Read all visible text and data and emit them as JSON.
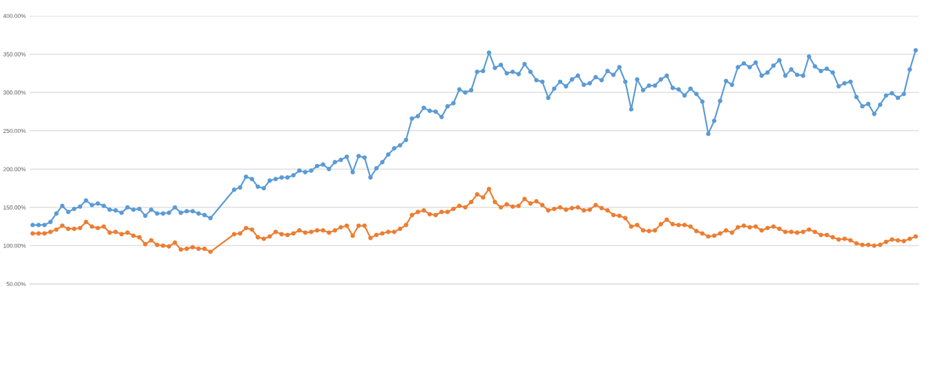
{
  "chart_data": {
    "type": "line",
    "categories": [
      null,
      null,
      null,
      null,
      null,
      null,
      null,
      null,
      null,
      null,
      null,
      null,
      null,
      null,
      null,
      null,
      null,
      null,
      null,
      null,
      null,
      null,
      null,
      null,
      null,
      null,
      null,
      null,
      null,
      null,
      null,
      null,
      null,
      null,
      null,
      null,
      null,
      null,
      null,
      null,
      null,
      null,
      null,
      null,
      null,
      null,
      null,
      null,
      null,
      null,
      null,
      null,
      null,
      null,
      null,
      null,
      null,
      null,
      null,
      null,
      null,
      null,
      null,
      null,
      null,
      null,
      null,
      null,
      null,
      null,
      null,
      null,
      null,
      null,
      null,
      null,
      null,
      null,
      null,
      null,
      null,
      null,
      null,
      null,
      null,
      null,
      null,
      null,
      null,
      null,
      null,
      null,
      null,
      null,
      null,
      null,
      null,
      null,
      null,
      null,
      null,
      null,
      null,
      null,
      null,
      null,
      null,
      null,
      null,
      null,
      null,
      null,
      null,
      null,
      null,
      null,
      null,
      null,
      null,
      null,
      null,
      null,
      null,
      null,
      null,
      null,
      null,
      null,
      null,
      null,
      null,
      null,
      null,
      null,
      null,
      null,
      null,
      null,
      null,
      null,
      null,
      null,
      null,
      null,
      null,
      null,
      null,
      null,
      null,
      null
    ],
    "series": [
      {
        "color": "#5b9bd5",
        "values": [
          127,
          127,
          127,
          131,
          142,
          152,
          144,
          148,
          151,
          159,
          153,
          155,
          152,
          147,
          146,
          143,
          150,
          147,
          148,
          139,
          147,
          142,
          142,
          143,
          150,
          143,
          145,
          145,
          142,
          140,
          136,
          null,
          null,
          null,
          173,
          176,
          190,
          187,
          177,
          175,
          185,
          187,
          189,
          189,
          192,
          198,
          196,
          198,
          204,
          206,
          200,
          209,
          212,
          216,
          196,
          217,
          215,
          189,
          201,
          209,
          219,
          227,
          231,
          238,
          266,
          269,
          280,
          276,
          275,
          268,
          282,
          286,
          304,
          300,
          303,
          327,
          328,
          352,
          332,
          336,
          325,
          327,
          324,
          337,
          327,
          316,
          314,
          293,
          305,
          314,
          308,
          317,
          322,
          310,
          312,
          320,
          316,
          328,
          323,
          333,
          314,
          278,
          317,
          303,
          309,
          309,
          317,
          322,
          306,
          304,
          296,
          305,
          298,
          288,
          246,
          263,
          289,
          315,
          310,
          333,
          338,
          333,
          339,
          322,
          326,
          335,
          342,
          322,
          330,
          323,
          322,
          347,
          334,
          328,
          331,
          326,
          308,
          312,
          314,
          294,
          282,
          285,
          272,
          284,
          296,
          299,
          293,
          298,
          330,
          355
        ]
      },
      {
        "color": "#ed7d31",
        "values": [
          116,
          116,
          116,
          118,
          121,
          126,
          122,
          122,
          123,
          131,
          125,
          123,
          125,
          117,
          118,
          115,
          117,
          113,
          111,
          102,
          107,
          101,
          100,
          99,
          104,
          95,
          96,
          98,
          96,
          96,
          92,
          null,
          null,
          null,
          115,
          116,
          123,
          121,
          111,
          109,
          112,
          118,
          115,
          114,
          116,
          120,
          117,
          118,
          120,
          120,
          117,
          120,
          124,
          126,
          113,
          126,
          126,
          110,
          114,
          116,
          118,
          118,
          122,
          127,
          140,
          144,
          146,
          141,
          140,
          144,
          144,
          148,
          152,
          150,
          157,
          167,
          163,
          174,
          157,
          150,
          154,
          151,
          152,
          161,
          155,
          158,
          153,
          146,
          148,
          150,
          147,
          149,
          150,
          146,
          147,
          153,
          149,
          146,
          140,
          139,
          136,
          125,
          127,
          120,
          119,
          120,
          128,
          134,
          128,
          127,
          127,
          125,
          119,
          116,
          112,
          113,
          116,
          120,
          117,
          124,
          126,
          124,
          125,
          120,
          123,
          125,
          122,
          118,
          118,
          117,
          118,
          121,
          118,
          114,
          114,
          111,
          108,
          109,
          107,
          103,
          101,
          101,
          100,
          101,
          105,
          108,
          107,
          106,
          109,
          112
        ]
      }
    ],
    "ylim": [
      50,
      400
    ],
    "yticks": [
      {
        "value": 50,
        "label": "50.00%"
      },
      {
        "value": 100,
        "label": "100.00%"
      },
      {
        "value": 150,
        "label": "150.00%"
      },
      {
        "value": 200,
        "label": "200.00%"
      },
      {
        "value": 250,
        "label": "250.00%"
      },
      {
        "value": 300,
        "label": "300.00%"
      },
      {
        "value": 350,
        "label": "350.00%"
      },
      {
        "value": 400,
        "label": "400.00%"
      }
    ],
    "grid": "y",
    "tick_labels": "y",
    "marker": "circle",
    "line_style": "solid"
  }
}
